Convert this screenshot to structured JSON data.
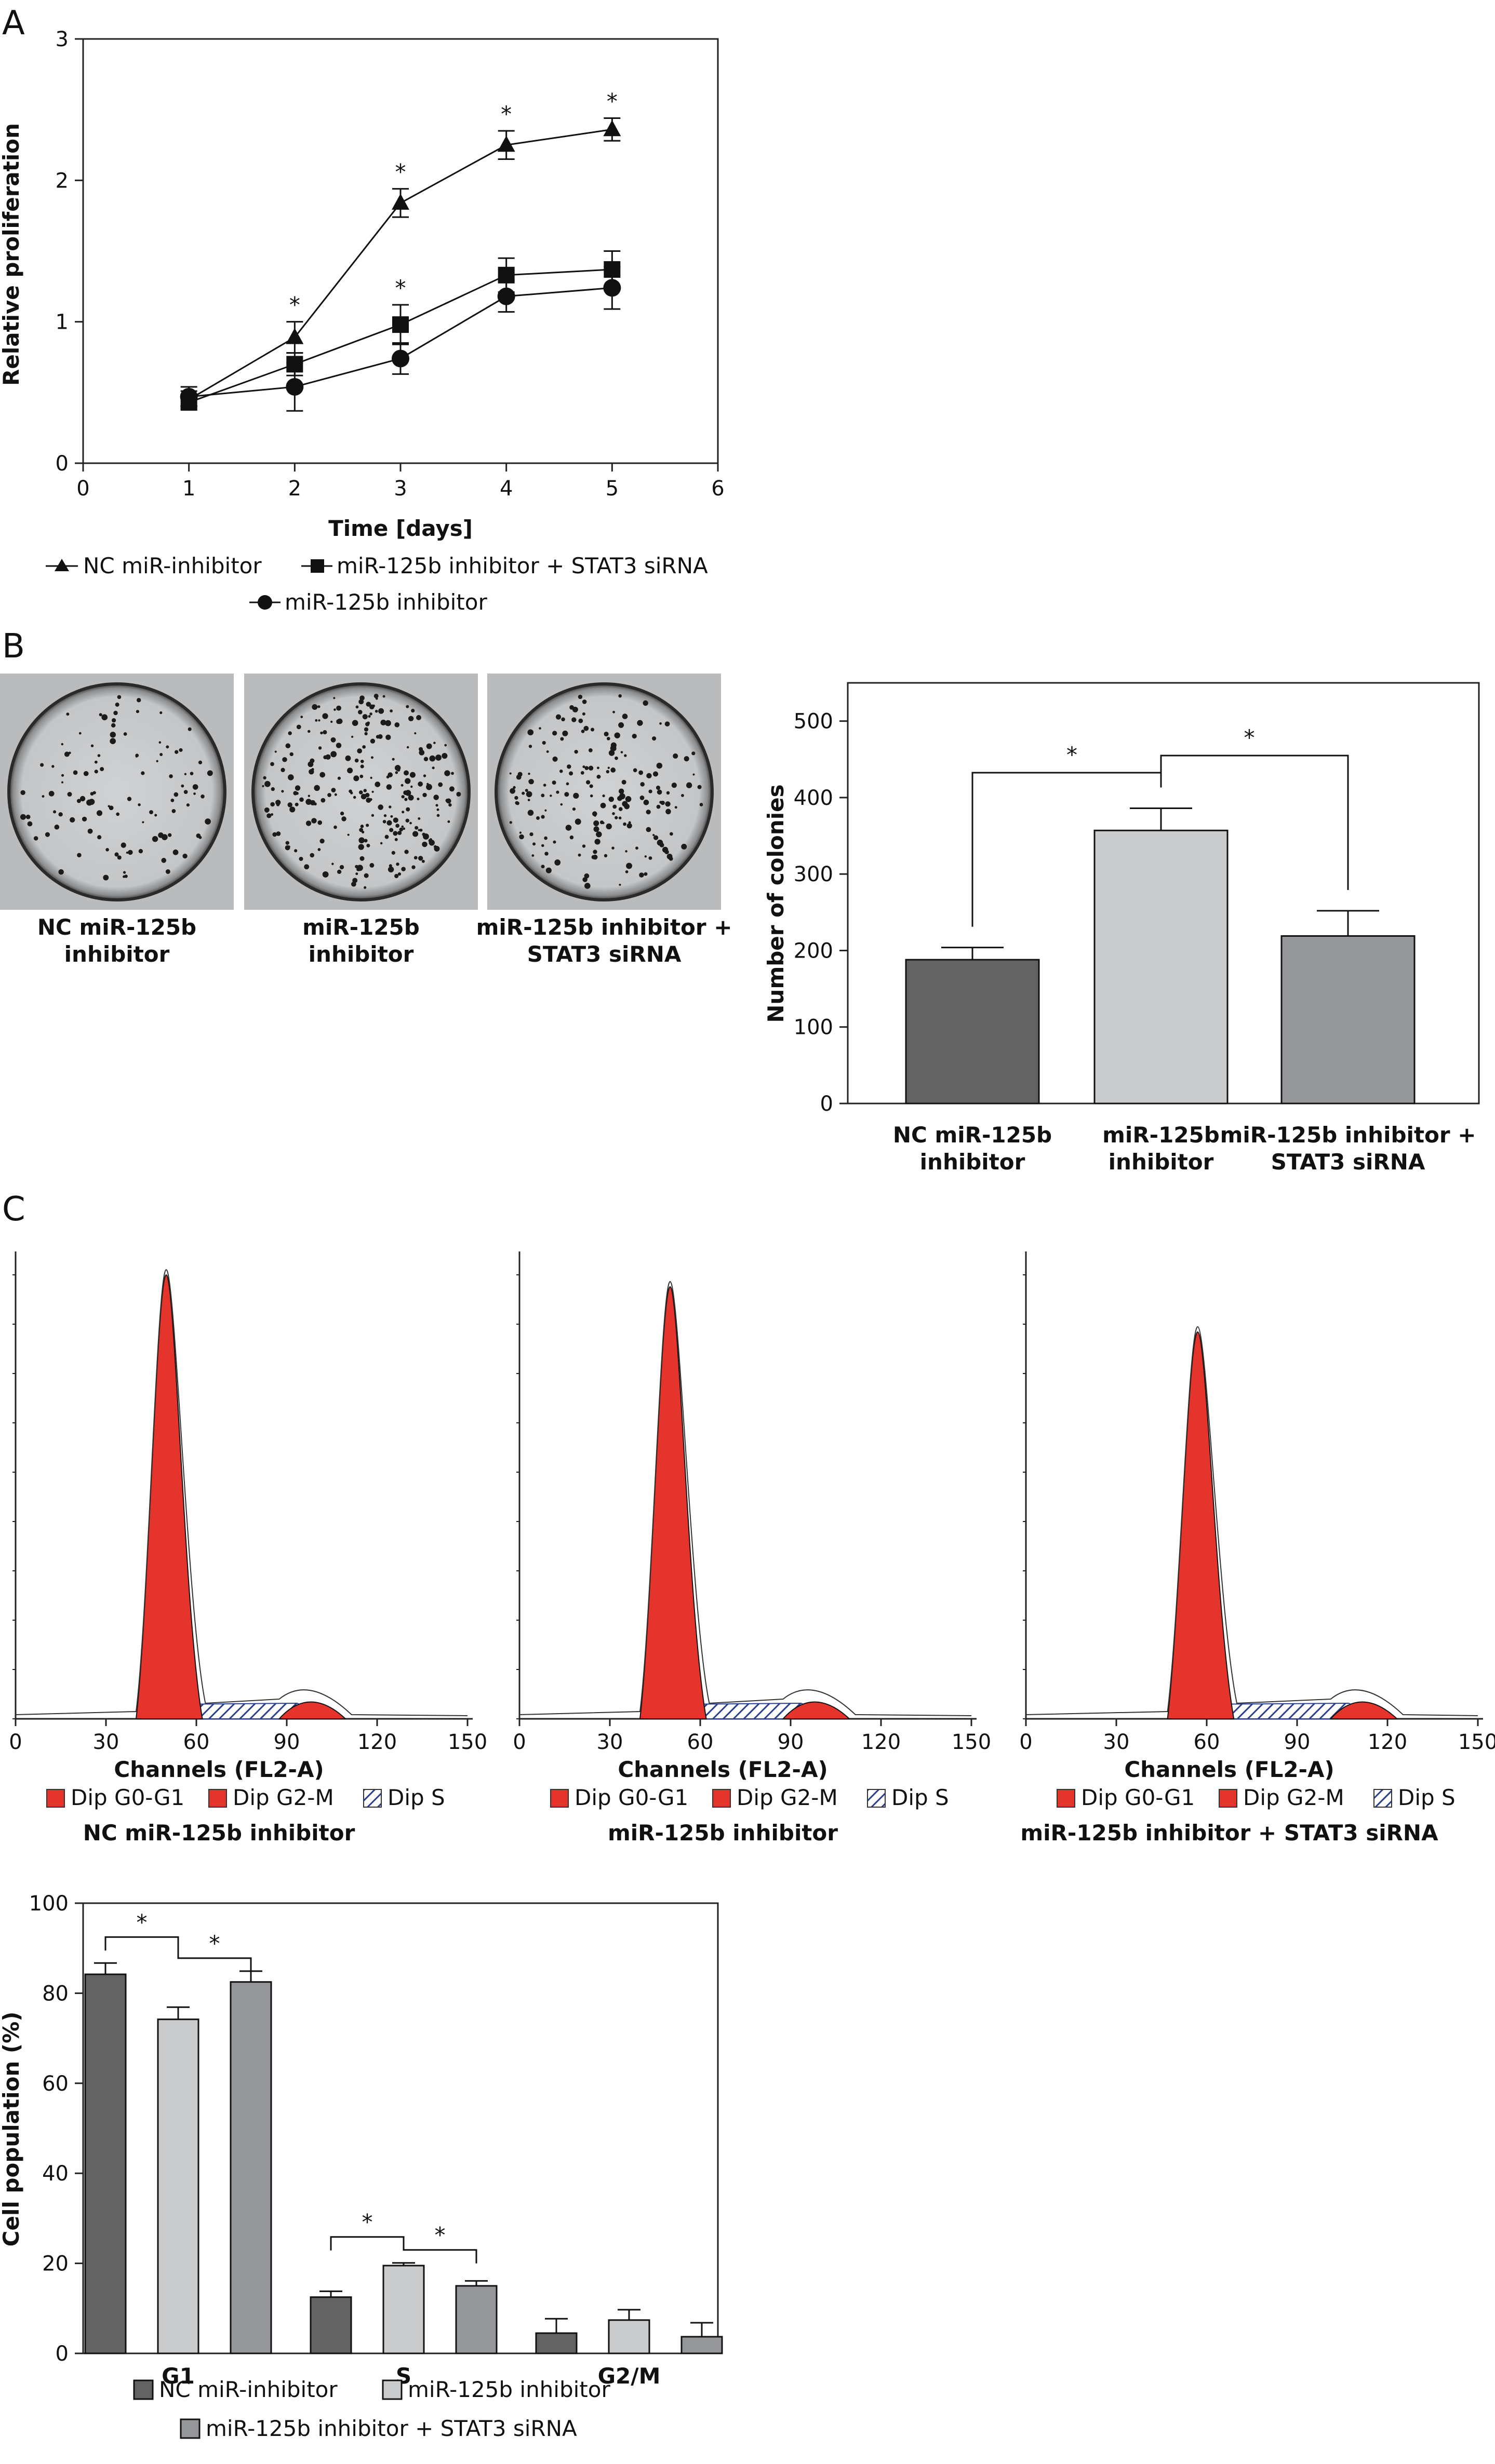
{
  "panels": {
    "a": "A",
    "b": "B",
    "c": "C"
  },
  "chart_data": [
    {
      "type": "line",
      "xlabel": "Time [days]",
      "ylabel": "Relative proliferation",
      "xlim": [
        0,
        6
      ],
      "ylim": [
        0,
        3
      ],
      "x_ticks": [
        "0",
        "1",
        "2",
        "3",
        "4",
        "5",
        "6"
      ],
      "y_ticks": [
        "0",
        "1",
        "2",
        "3"
      ],
      "x": [
        1,
        2,
        3,
        4,
        5
      ],
      "grid": false,
      "series": [
        {
          "name": "NC miR-inhibitor",
          "marker": "triangle",
          "values": [
            0.45,
            0.89,
            1.84,
            2.25,
            2.36
          ],
          "errors": [
            0.06,
            0.11,
            0.1,
            0.1,
            0.08
          ]
        },
        {
          "name": "miR-125b inhibitor + STAT3 siRNA",
          "marker": "square",
          "values": [
            0.43,
            0.7,
            0.98,
            1.33,
            1.37
          ],
          "errors": [
            0.05,
            0.08,
            0.14,
            0.12,
            0.13
          ]
        },
        {
          "name": "miR-125b inhibitor",
          "marker": "circle",
          "values": [
            0.47,
            0.54,
            0.74,
            1.18,
            1.24
          ],
          "errors": [
            0.07,
            0.17,
            0.11,
            0.11,
            0.15
          ]
        }
      ],
      "significance": {
        "marker": "*",
        "x": [
          2,
          3,
          4,
          5,
          3
        ]
      }
    },
    {
      "type": "image",
      "photo_labels": [
        "NC miR-125b inhibitor",
        "miR-125b inhibitor",
        "miR-125b inhibitor + STAT3 siRNA"
      ]
    },
    {
      "type": "bar",
      "ylabel": "Number of colonies",
      "ylim": [
        0,
        550
      ],
      "y_ticks": [
        "0",
        "100",
        "200",
        "300",
        "400",
        "500"
      ],
      "categories": [
        "NC miR-125b inhibitor",
        "miR-125b inhibitor",
        "miR-125b inhibitor + STAT3 siRNA"
      ],
      "values": [
        188,
        357,
        219
      ],
      "errors": [
        16,
        29,
        33
      ],
      "colors": [
        "#636363",
        "#cacbcd",
        "#959699"
      ],
      "significance": [
        {
          "from": 0,
          "to": 1,
          "mark": "*"
        },
        {
          "from": 1,
          "to": 2,
          "mark": "*"
        }
      ]
    },
    {
      "type": "histogram",
      "xlabel": "Channels (FL2-A)",
      "x_ticks": [
        "0",
        "30",
        "60",
        "90",
        "120",
        "150"
      ],
      "xlim": [
        0,
        150
      ],
      "legend": [
        "Dip G0-G1",
        "Dip G2-M",
        "Dip S"
      ],
      "legend_colors": [
        "#e5342c",
        "#e5342c",
        "#c9d3ea"
      ],
      "plots": [
        {
          "title": "NC miR-125b inhibitor",
          "g1_peak": 50
        },
        {
          "title": "miR-125b inhibitor",
          "g1_peak": 50
        },
        {
          "title": "miR-125b inhibitor + STAT3 siRNA",
          "g1_peak": 57
        }
      ]
    },
    {
      "type": "bar",
      "ylabel": "Cell population (%)",
      "ylim": [
        0,
        100
      ],
      "y_ticks": [
        "0",
        "20",
        "40",
        "60",
        "80",
        "100"
      ],
      "categories": [
        "G1",
        "S",
        "G2/M"
      ],
      "series": [
        {
          "name": "NC miR-inhibitor",
          "color": "#636363",
          "values": [
            84.2,
            12.5,
            4.5
          ],
          "errors": [
            2.5,
            1.3,
            3.2
          ]
        },
        {
          "name": "miR-125b inhibitor",
          "color": "#cacbcd",
          "values": [
            74.2,
            19.5,
            7.4
          ],
          "errors": [
            2.7,
            0.6,
            2.3
          ]
        },
        {
          "name": "miR-125b inhibitor + STAT3 siRNA",
          "color": "#959699",
          "values": [
            82.5,
            15.0,
            3.7
          ],
          "errors": [
            2.4,
            1.1,
            3.1
          ]
        }
      ],
      "significance": [
        {
          "group": 0,
          "mark": "*"
        },
        {
          "group": 1,
          "mark": "*"
        }
      ]
    }
  ]
}
